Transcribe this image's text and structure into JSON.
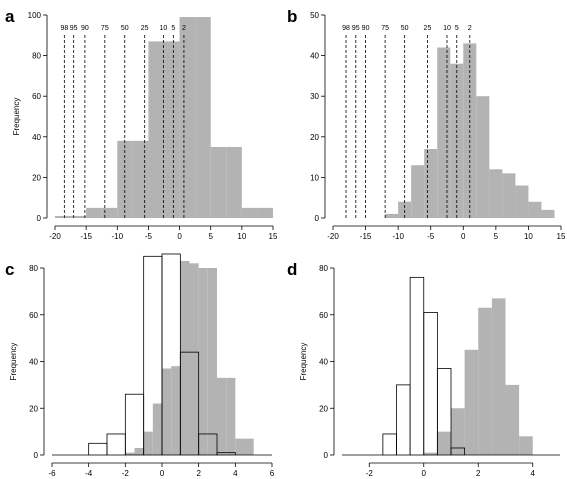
{
  "chart_data": [
    {
      "panel": "a",
      "type": "bar",
      "ylabel": "Frequency",
      "xlim": [
        -20,
        15
      ],
      "ylim": [
        0,
        100
      ],
      "xticks": [
        -20,
        -15,
        -10,
        -5,
        0,
        5,
        10,
        15
      ],
      "yticks": [
        0,
        20,
        40,
        60,
        80,
        100
      ],
      "series": [
        {
          "fill": "#b3b3b3",
          "bins": [
            {
              "x0": -20,
              "x1": -17.5,
              "y": 1
            },
            {
              "x0": -17.5,
              "x1": -15,
              "y": 1
            },
            {
              "x0": -15,
              "x1": -12.5,
              "y": 5
            },
            {
              "x0": -12.5,
              "x1": -10,
              "y": 5
            },
            {
              "x0": -10,
              "x1": -7.5,
              "y": 38
            },
            {
              "x0": -7.5,
              "x1": -5,
              "y": 38
            },
            {
              "x0": -5,
              "x1": -2.5,
              "y": 87
            },
            {
              "x0": -2.5,
              "x1": 0,
              "y": 87
            },
            {
              "x0": 0,
              "x1": 2.5,
              "y": 99
            },
            {
              "x0": 2.5,
              "x1": 5,
              "y": 99
            },
            {
              "x0": 5,
              "x1": 7.5,
              "y": 35
            },
            {
              "x0": 7.5,
              "x1": 10,
              "y": 35
            },
            {
              "x0": 10,
              "x1": 12.5,
              "y": 5
            },
            {
              "x0": 12.5,
              "x1": 15,
              "y": 5
            }
          ]
        }
      ],
      "percentiles": [
        {
          "label": "98",
          "x": -18.5
        },
        {
          "label": "95",
          "x": -17
        },
        {
          "label": "90",
          "x": -15.2
        },
        {
          "label": "75",
          "x": -12
        },
        {
          "label": "50",
          "x": -8.8
        },
        {
          "label": "25",
          "x": -5.6
        },
        {
          "label": "10",
          "x": -2.6
        },
        {
          "label": "5",
          "x": -1
        },
        {
          "label": "2",
          "x": 0.7
        }
      ]
    },
    {
      "panel": "b",
      "type": "bar",
      "ylabel": "",
      "xlim": [
        -20,
        15
      ],
      "ylim": [
        0,
        50
      ],
      "xticks": [
        -20,
        -15,
        -10,
        -5,
        0,
        5,
        10,
        15
      ],
      "yticks": [
        0,
        10,
        20,
        30,
        40,
        50
      ],
      "series": [
        {
          "fill": "#b3b3b3",
          "bins": [
            {
              "x0": -12,
              "x1": -10,
              "y": 1
            },
            {
              "x0": -10,
              "x1": -8,
              "y": 4
            },
            {
              "x0": -8,
              "x1": -6,
              "y": 13
            },
            {
              "x0": -6,
              "x1": -4,
              "y": 17
            },
            {
              "x0": -4,
              "x1": -2,
              "y": 42
            },
            {
              "x0": -2,
              "x1": 0,
              "y": 38
            },
            {
              "x0": 0,
              "x1": 2,
              "y": 43
            },
            {
              "x0": 2,
              "x1": 4,
              "y": 30
            },
            {
              "x0": 4,
              "x1": 6,
              "y": 12
            },
            {
              "x0": 6,
              "x1": 8,
              "y": 11
            },
            {
              "x0": 8,
              "x1": 10,
              "y": 8
            },
            {
              "x0": 10,
              "x1": 12,
              "y": 4
            },
            {
              "x0": 12,
              "x1": 14,
              "y": 2
            }
          ]
        }
      ],
      "percentiles": [
        {
          "label": "98",
          "x": -18
        },
        {
          "label": "95",
          "x": -16.5
        },
        {
          "label": "90",
          "x": -15
        },
        {
          "label": "75",
          "x": -12
        },
        {
          "label": "50",
          "x": -9
        },
        {
          "label": "25",
          "x": -5.5
        },
        {
          "label": "10",
          "x": -2.5
        },
        {
          "label": "5",
          "x": -1
        },
        {
          "label": "2",
          "x": 1
        }
      ]
    },
    {
      "panel": "c",
      "type": "bar",
      "ylabel": "Frequency",
      "xlim": [
        -6,
        6
      ],
      "ylim": [
        0,
        80
      ],
      "xticks": [
        -6,
        -4,
        -2,
        0,
        2,
        4,
        6
      ],
      "yticks": [
        0,
        20,
        40,
        60,
        80
      ],
      "series": [
        {
          "fill": "#b3b3b3",
          "bins": [
            {
              "x0": -2,
              "x1": -1.5,
              "y": 1
            },
            {
              "x0": -1.5,
              "x1": -1,
              "y": 3
            },
            {
              "x0": -1,
              "x1": -0.5,
              "y": 10
            },
            {
              "x0": -0.5,
              "x1": 0,
              "y": 22
            },
            {
              "x0": 0,
              "x1": 0.5,
              "y": 37
            },
            {
              "x0": 0.5,
              "x1": 1,
              "y": 38
            },
            {
              "x0": 1,
              "x1": 1.5,
              "y": 83
            },
            {
              "x0": 1.5,
              "x1": 2,
              "y": 82
            },
            {
              "x0": 2,
              "x1": 2.5,
              "y": 80
            },
            {
              "x0": 2.5,
              "x1": 3,
              "y": 80
            },
            {
              "x0": 3,
              "x1": 3.5,
              "y": 33
            },
            {
              "x0": 3.5,
              "x1": 4,
              "y": 33
            },
            {
              "x0": 4,
              "x1": 4.5,
              "y": 7
            },
            {
              "x0": 4.5,
              "x1": 5,
              "y": 7
            }
          ]
        },
        {
          "fill": "none",
          "bins": [
            {
              "x0": -6,
              "x1": -4,
              "y": 0
            },
            {
              "x0": -4,
              "x1": -3,
              "y": 5
            },
            {
              "x0": -3,
              "x1": -2,
              "y": 9
            },
            {
              "x0": -2,
              "x1": -1,
              "y": 26
            },
            {
              "x0": -1,
              "x1": 0,
              "y": 85
            },
            {
              "x0": 0,
              "x1": 1,
              "y": 86
            },
            {
              "x0": 1,
              "x1": 2,
              "y": 44
            },
            {
              "x0": 2,
              "x1": 3,
              "y": 9
            },
            {
              "x0": 3,
              "x1": 4,
              "y": 1
            },
            {
              "x0": 4,
              "x1": 6,
              "y": 0
            }
          ]
        }
      ]
    },
    {
      "panel": "d",
      "type": "bar",
      "ylabel": "Frequency",
      "xlim": [
        -3,
        5
      ],
      "ylim": [
        0,
        80
      ],
      "xticks": [
        -2,
        0,
        2,
        4
      ],
      "yticks": [
        0,
        20,
        40,
        60,
        80
      ],
      "series": [
        {
          "fill": "#b3b3b3",
          "bins": [
            {
              "x0": 0,
              "x1": 0.5,
              "y": 1
            },
            {
              "x0": 0.5,
              "x1": 1,
              "y": 10
            },
            {
              "x0": 1,
              "x1": 1.5,
              "y": 20
            },
            {
              "x0": 1.5,
              "x1": 2,
              "y": 45
            },
            {
              "x0": 2,
              "x1": 2.5,
              "y": 63
            },
            {
              "x0": 2.5,
              "x1": 3,
              "y": 67
            },
            {
              "x0": 3,
              "x1": 3.5,
              "y": 30
            },
            {
              "x0": 3.5,
              "x1": 4,
              "y": 8
            }
          ]
        },
        {
          "fill": "none",
          "bins": [
            {
              "x0": -3,
              "x1": -1.5,
              "y": 0
            },
            {
              "x0": -1.5,
              "x1": -1,
              "y": 9
            },
            {
              "x0": -1,
              "x1": -0.5,
              "y": 30
            },
            {
              "x0": -0.5,
              "x1": 0,
              "y": 76
            },
            {
              "x0": 0,
              "x1": 0.5,
              "y": 61
            },
            {
              "x0": 0.5,
              "x1": 1,
              "y": 37
            },
            {
              "x0": 1,
              "x1": 1.5,
              "y": 3
            },
            {
              "x0": 1.5,
              "x1": 5,
              "y": 0
            }
          ]
        }
      ]
    }
  ]
}
